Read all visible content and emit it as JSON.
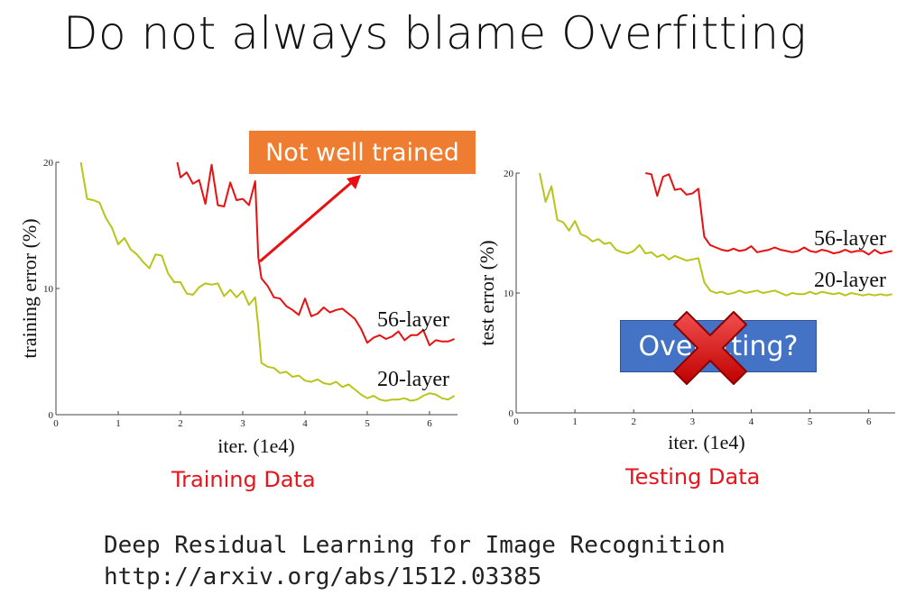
{
  "slide": {
    "title": "Do not always blame Overfitting",
    "callout_not_trained": "Not well trained",
    "callout_overfitting": "Overfitting?",
    "caption_training": "Training Data",
    "caption_testing": "Testing Data",
    "reference_title": "Deep Residual Learning for Image Recognition",
    "reference_url": "http://arxiv.org/abs/1512.03385",
    "colors": {
      "red": "#e8141b",
      "orange": "#ee7d31",
      "blue": "#4473c5",
      "line_56": "#e81010",
      "line_20": "#b9c41a"
    }
  },
  "chart_data": [
    {
      "type": "line",
      "xlabel": "iter. (1e4)",
      "ylabel": "training error (%)",
      "xlim": [
        0,
        6.45
      ],
      "ylim": [
        0,
        20
      ],
      "xticks": [
        0,
        1,
        2,
        3,
        4,
        5,
        6
      ],
      "yticks": [
        0,
        10,
        20
      ],
      "series": [
        {
          "name": "56-layer",
          "x": [
            1.95,
            2.0,
            2.1,
            2.2,
            2.3,
            2.4,
            2.5,
            2.6,
            2.7,
            2.8,
            2.9,
            3.0,
            3.1,
            3.2,
            3.25,
            3.3,
            3.4,
            3.5,
            3.6,
            3.7,
            3.8,
            3.9,
            4.0,
            4.1,
            4.2,
            4.3,
            4.4,
            4.5,
            4.6,
            4.7,
            4.8,
            4.9,
            5.0,
            5.1,
            5.2,
            5.3,
            5.4,
            5.5,
            5.6,
            5.7,
            5.8,
            5.9,
            6.0,
            6.1,
            6.2,
            6.3,
            6.4
          ],
          "values": [
            20.0,
            18.8,
            19.2,
            18.3,
            18.6,
            16.7,
            19.8,
            16.6,
            16.5,
            18.4,
            17.0,
            17.1,
            16.6,
            18.5,
            12.5,
            10.8,
            10.2,
            9.3,
            9.2,
            8.6,
            8.3,
            7.9,
            9.2,
            7.8,
            8.0,
            8.5,
            8.1,
            8.3,
            8.4,
            8.0,
            7.6,
            6.8,
            5.7,
            6.1,
            6.3,
            6.0,
            6.2,
            6.6,
            5.9,
            6.3,
            6.3,
            6.7,
            5.5,
            5.9,
            5.8,
            5.8,
            6.0
          ]
        },
        {
          "name": "20-layer",
          "x": [
            0.4,
            0.5,
            0.6,
            0.7,
            0.8,
            0.9,
            1.0,
            1.1,
            1.2,
            1.3,
            1.4,
            1.5,
            1.6,
            1.7,
            1.8,
            1.9,
            2.0,
            2.1,
            2.2,
            2.3,
            2.4,
            2.5,
            2.6,
            2.7,
            2.8,
            2.9,
            3.0,
            3.1,
            3.2,
            3.25,
            3.3,
            3.4,
            3.5,
            3.6,
            3.7,
            3.8,
            3.9,
            4.0,
            4.1,
            4.2,
            4.3,
            4.4,
            4.5,
            4.6,
            4.7,
            4.8,
            4.9,
            5.0,
            5.1,
            5.2,
            5.3,
            5.4,
            5.5,
            5.6,
            5.7,
            5.8,
            5.9,
            6.0,
            6.1,
            6.2,
            6.3,
            6.4
          ],
          "values": [
            20.0,
            17.1,
            17.0,
            16.8,
            15.6,
            14.8,
            13.5,
            14.0,
            13.1,
            12.7,
            12.1,
            11.6,
            12.7,
            12.6,
            11.2,
            10.5,
            10.5,
            9.6,
            9.5,
            10.1,
            10.4,
            10.3,
            10.4,
            9.4,
            9.9,
            9.3,
            9.8,
            8.7,
            9.3,
            7.0,
            4.1,
            3.8,
            3.7,
            3.3,
            3.4,
            3.0,
            3.1,
            2.7,
            2.6,
            2.8,
            2.5,
            2.4,
            2.6,
            2.2,
            2.4,
            2.0,
            1.6,
            1.3,
            1.5,
            1.2,
            1.1,
            1.2,
            1.2,
            1.3,
            1.1,
            1.2,
            1.5,
            1.7,
            1.6,
            1.3,
            1.2,
            1.5
          ]
        }
      ]
    },
    {
      "type": "line",
      "xlabel": "iter. (1e4)",
      "ylabel": "test error (%)",
      "xlim": [
        0,
        6.45
      ],
      "ylim": [
        0,
        20
      ],
      "xticks": [
        0,
        1,
        2,
        3,
        4,
        5,
        6
      ],
      "yticks": [
        0,
        10,
        20
      ],
      "series": [
        {
          "name": "56-layer",
          "x": [
            2.2,
            2.3,
            2.4,
            2.5,
            2.6,
            2.7,
            2.8,
            2.9,
            3.0,
            3.1,
            3.2,
            3.3,
            3.4,
            3.5,
            3.6,
            3.7,
            3.8,
            3.9,
            4.0,
            4.1,
            4.2,
            4.3,
            4.4,
            4.5,
            4.6,
            4.7,
            4.8,
            4.9,
            5.0,
            5.1,
            5.2,
            5.3,
            5.4,
            5.5,
            5.6,
            5.7,
            5.8,
            5.9,
            6.0,
            6.1,
            6.2,
            6.3,
            6.4
          ],
          "values": [
            20.0,
            19.9,
            18.1,
            19.7,
            19.9,
            18.6,
            18.7,
            18.2,
            18.3,
            18.7,
            14.7,
            14.0,
            13.8,
            13.6,
            13.5,
            13.7,
            13.5,
            13.6,
            13.9,
            13.4,
            13.5,
            13.6,
            13.8,
            13.6,
            13.5,
            13.4,
            13.5,
            13.8,
            13.5,
            13.4,
            13.6,
            13.5,
            13.3,
            13.4,
            13.6,
            13.4,
            13.5,
            13.5,
            13.2,
            13.6,
            13.3,
            13.4,
            13.5
          ]
        },
        {
          "name": "20-layer",
          "x": [
            0.4,
            0.5,
            0.6,
            0.7,
            0.8,
            0.9,
            1.0,
            1.1,
            1.2,
            1.3,
            1.4,
            1.5,
            1.6,
            1.7,
            1.8,
            1.9,
            2.0,
            2.1,
            2.2,
            2.3,
            2.4,
            2.5,
            2.6,
            2.7,
            2.8,
            2.9,
            3.0,
            3.1,
            3.2,
            3.3,
            3.4,
            3.5,
            3.6,
            3.7,
            3.8,
            3.9,
            4.0,
            4.1,
            4.2,
            4.3,
            4.4,
            4.5,
            4.6,
            4.7,
            4.8,
            4.9,
            5.0,
            5.1,
            5.2,
            5.3,
            5.4,
            5.5,
            5.6,
            5.7,
            5.8,
            5.9,
            6.0,
            6.1,
            6.2,
            6.3,
            6.4
          ],
          "values": [
            20.0,
            17.6,
            18.9,
            16.1,
            15.9,
            15.2,
            16.0,
            14.9,
            14.7,
            14.3,
            14.5,
            14.1,
            14.2,
            13.6,
            13.4,
            13.3,
            13.5,
            14.0,
            13.3,
            13.4,
            13.0,
            13.2,
            12.8,
            13.1,
            12.9,
            12.7,
            12.8,
            12.9,
            10.9,
            10.2,
            10.0,
            10.1,
            9.9,
            10.0,
            10.2,
            10.0,
            10.1,
            10.2,
            10.0,
            10.1,
            10.2,
            10.0,
            9.8,
            10.0,
            9.9,
            9.9,
            10.1,
            9.9,
            10.1,
            10.0,
            9.9,
            10.0,
            9.8,
            10.0,
            9.9,
            9.8,
            9.9,
            9.8,
            9.9,
            9.8,
            9.9
          ]
        }
      ]
    }
  ]
}
